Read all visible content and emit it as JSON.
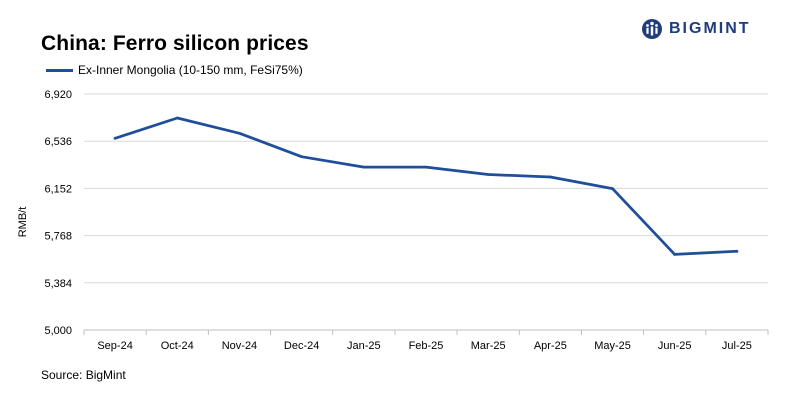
{
  "chart_data": {
    "type": "line",
    "title": "China: Ferro silicon prices",
    "ylabel": "RMB/t",
    "xlabel": "",
    "categories": [
      "Sep-24",
      "Oct-24",
      "Nov-24",
      "Dec-24",
      "Jan-25",
      "Feb-25",
      "Mar-25",
      "Apr-25",
      "May-25",
      "Jun-25",
      "Jul-25"
    ],
    "series": [
      {
        "name": "Ex-Inner Mongolia (10-150 mm, FeSi75%)",
        "color": "#1f4e9a",
        "values": [
          6560,
          6725,
          6600,
          6410,
          6325,
          6325,
          6265,
          6245,
          6150,
          5615,
          5640
        ]
      }
    ],
    "ylim": [
      5000,
      6920
    ],
    "yticks": [
      5000,
      5384,
      5768,
      6152,
      6536,
      6920
    ],
    "ytick_labels": [
      "5,000",
      "5,384",
      "5,768",
      "6,152",
      "6,536",
      "6,920"
    ],
    "grid": "horizontal",
    "legend_position": "top-left"
  },
  "logo": {
    "text": "BIGMINT",
    "color": "#1f3d7a"
  },
  "source": "Source: BigMint"
}
